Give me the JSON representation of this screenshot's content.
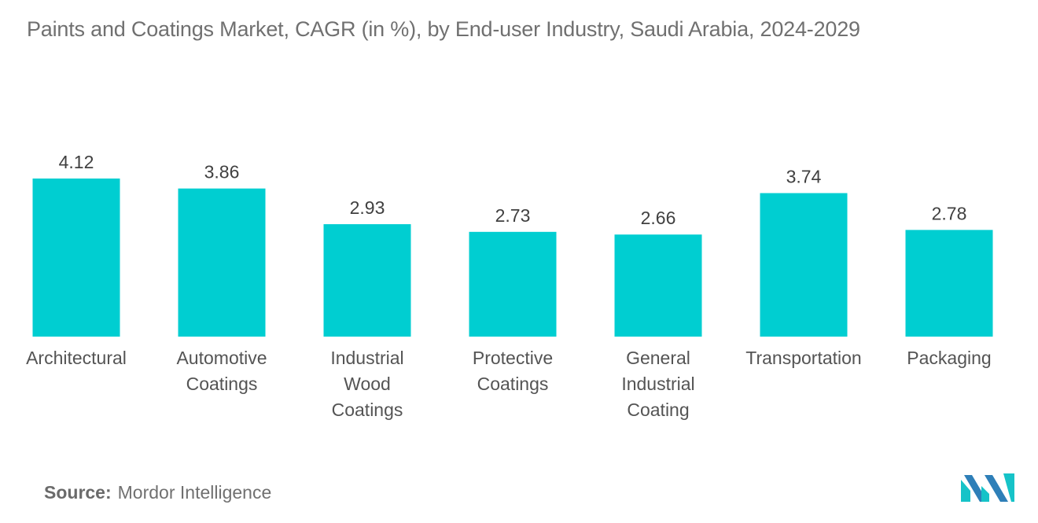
{
  "chart_data": {
    "type": "bar",
    "title": "Paints and Coatings Market, CAGR (in %), by End-user Industry, Saudi Arabia, 2024-2029",
    "categories": [
      [
        "Architectural"
      ],
      [
        "Automotive",
        "Coatings"
      ],
      [
        "Industrial",
        "Wood",
        "Coatings"
      ],
      [
        "Protective",
        "Coatings"
      ],
      [
        "General",
        "Industrial",
        "Coating"
      ],
      [
        "Transportation"
      ],
      [
        "Packaging"
      ]
    ],
    "values": [
      4.12,
      3.86,
      2.93,
      2.73,
      2.66,
      3.74,
      2.78
    ],
    "value_labels": [
      "4.12",
      "3.86",
      "2.93",
      "2.73",
      "2.66",
      "3.74",
      "2.78"
    ],
    "xlabel": "",
    "ylabel": "",
    "ylim": [
      0,
      4.12
    ],
    "grid": false,
    "bar_color": "#00CED1"
  },
  "source": {
    "label": "Source:",
    "text": "Mordor Intelligence"
  },
  "logo": {
    "icon": "mordor-intelligence-logo-icon",
    "colors": [
      "#2E7FB8",
      "#16C3C8"
    ]
  }
}
